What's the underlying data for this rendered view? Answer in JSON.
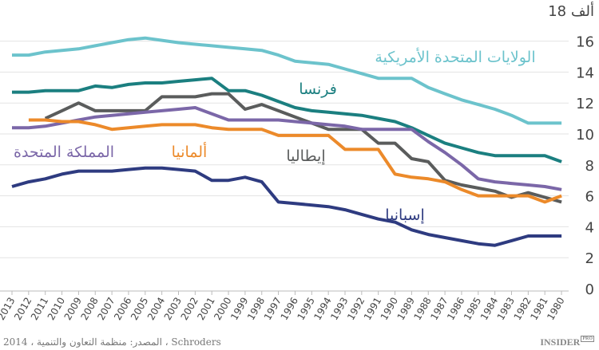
{
  "chart_data": {
    "type": "line",
    "title": "",
    "xlabel": "",
    "ylabel": "",
    "y_unit_label": "18 ألف",
    "ylim": [
      0,
      18
    ],
    "yticks": [
      0,
      2,
      4,
      6,
      8,
      10,
      12,
      14,
      16,
      18
    ],
    "grid": true,
    "x_direction": "right-to-left",
    "x": [
      2013,
      2012,
      2011,
      2010,
      2009,
      2008,
      2007,
      2006,
      2005,
      2004,
      2003,
      2002,
      2001,
      2000,
      1999,
      1998,
      1997,
      1996,
      1995,
      1994,
      1993,
      1992,
      1991,
      1990,
      1989,
      1988,
      1987,
      1986,
      1985,
      1984,
      1983,
      1982,
      1981,
      1980
    ],
    "series": [
      {
        "name": "الولايات المتحدة الأمريكية",
        "color": "#6cc3cc",
        "values": [
          15.1,
          15.1,
          15.3,
          15.4,
          15.5,
          15.7,
          15.9,
          16.1,
          16.2,
          16.05,
          15.9,
          15.8,
          15.7,
          15.6,
          15.5,
          15.4,
          15.1,
          14.7,
          14.6,
          14.5,
          14.2,
          13.9,
          13.6,
          13.6,
          13.6,
          13.0,
          12.6,
          12.2,
          11.9,
          11.6,
          11.2,
          10.7,
          10.7,
          10.7
        ]
      },
      {
        "name": "فرنسا",
        "color": "#1b7f80",
        "values": [
          12.7,
          12.7,
          12.8,
          12.8,
          12.8,
          13.1,
          13.0,
          13.2,
          13.3,
          13.3,
          13.4,
          13.5,
          13.6,
          12.8,
          12.8,
          12.5,
          12.1,
          11.7,
          11.5,
          11.4,
          11.3,
          11.2,
          11.0,
          10.8,
          10.4,
          9.9,
          9.4,
          9.1,
          8.8,
          8.6,
          8.6,
          8.6,
          8.6,
          8.2
        ]
      },
      {
        "name": "إيطاليا",
        "color": "#5a5c5c",
        "values": [
          null,
          null,
          11.0,
          11.5,
          12.0,
          11.5,
          11.5,
          11.5,
          11.5,
          12.4,
          12.4,
          12.4,
          12.6,
          12.6,
          11.6,
          11.9,
          11.5,
          11.1,
          10.7,
          10.3,
          10.3,
          10.3,
          9.4,
          9.4,
          8.4,
          8.2,
          7.0,
          6.7,
          6.5,
          6.3,
          5.9,
          6.2,
          5.9,
          5.6
        ]
      },
      {
        "name": "المملكة المتحدة",
        "color": "#7b67a8",
        "values": [
          10.4,
          10.4,
          10.5,
          10.7,
          10.9,
          11.1,
          11.2,
          11.3,
          11.4,
          11.5,
          11.6,
          11.7,
          11.3,
          10.9,
          10.9,
          10.9,
          10.9,
          10.8,
          10.7,
          10.6,
          10.5,
          10.3,
          10.3,
          10.3,
          10.3,
          9.5,
          8.8,
          8.0,
          7.1,
          6.9,
          6.8,
          6.7,
          6.6,
          6.4
        ]
      },
      {
        "name": "ألمانيا",
        "color": "#ec8a2a",
        "values": [
          null,
          10.9,
          10.9,
          10.8,
          10.8,
          10.6,
          10.3,
          10.4,
          10.5,
          10.6,
          10.6,
          10.6,
          10.4,
          10.3,
          10.3,
          10.3,
          9.9,
          9.9,
          9.9,
          9.9,
          9.0,
          9.0,
          9.0,
          7.4,
          7.2,
          7.1,
          6.9,
          6.4,
          6.0,
          6.0,
          6.0,
          6.0,
          5.6,
          6.0
        ]
      },
      {
        "name": "إسبانيا",
        "color": "#2e3b80",
        "values": [
          6.6,
          6.9,
          7.1,
          7.4,
          7.6,
          7.6,
          7.6,
          7.7,
          7.8,
          7.8,
          7.7,
          7.6,
          7.0,
          7.0,
          7.2,
          6.9,
          5.6,
          5.5,
          5.4,
          5.3,
          5.1,
          4.8,
          4.5,
          4.3,
          3.8,
          3.5,
          3.3,
          3.1,
          2.9,
          2.8,
          3.1,
          3.4,
          3.4,
          3.4
        ]
      }
    ]
  },
  "footer": {
    "source": "المصدر: منظمة التعاون والتنمية ، 2014 ، Schroders",
    "logo": "INSIDER",
    "logo_badge": "PRO"
  }
}
